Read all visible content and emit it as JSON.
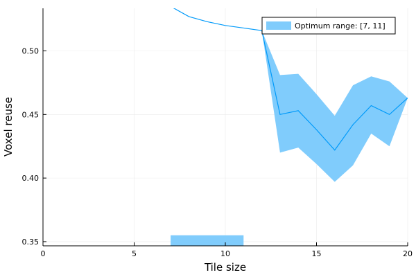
{
  "chart_data": {
    "type": "line",
    "xlabel": "Tile size",
    "ylabel": "Voxel reuse",
    "xlim": [
      0,
      20
    ],
    "ylim": [
      0.3467,
      0.5335
    ],
    "xticks": [
      0,
      5,
      10,
      15,
      20
    ],
    "yticks": [
      0.35,
      0.4,
      0.45,
      0.5
    ],
    "xtick_labels": [
      "0",
      "5",
      "10",
      "15",
      "20"
    ],
    "ytick_labels": [
      "0.35",
      "0.40",
      "0.45",
      "0.50"
    ],
    "grid": true,
    "legend_position": "top-right",
    "colors": {
      "series": "#009AFA",
      "band": "#80CCFC",
      "grid": "#EBEBEB",
      "axis": "#000000"
    },
    "optimum_range": {
      "name": "Optimum range: [7, 11]",
      "x_start": 7,
      "x_end": 11,
      "y_bottom": 0.3467,
      "y_top": 0.355
    },
    "series": [
      {
        "x": [
          7,
          8,
          9,
          10,
          11,
          12,
          13,
          14,
          15,
          16,
          17,
          18,
          19,
          20
        ],
        "y": [
          0.535,
          0.527,
          0.523,
          0.52,
          0.518,
          0.516,
          0.45,
          0.453,
          0.438,
          0.422,
          0.442,
          0.457,
          0.45,
          0.463
        ],
        "band_upper": [
          null,
          null,
          null,
          null,
          null,
          0.516,
          0.481,
          0.482,
          0.466,
          0.449,
          0.473,
          0.48,
          0.476,
          0.463
        ],
        "band_lower": [
          null,
          null,
          null,
          null,
          null,
          0.516,
          0.42,
          0.424,
          0.411,
          0.397,
          0.41,
          0.435,
          0.425,
          0.463
        ]
      }
    ]
  }
}
